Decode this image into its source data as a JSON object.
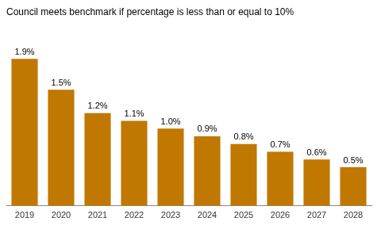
{
  "chart_data": {
    "type": "bar",
    "title": "Council meets benchmark if percentage is less than or equal to 10%",
    "categories": [
      "2019",
      "2020",
      "2021",
      "2022",
      "2023",
      "2024",
      "2025",
      "2026",
      "2027",
      "2028"
    ],
    "values": [
      1.9,
      1.5,
      1.2,
      1.1,
      1.0,
      0.9,
      0.8,
      0.7,
      0.6,
      0.5
    ],
    "value_labels": [
      "1.9%",
      "1.5%",
      "1.2%",
      "1.1%",
      "1.0%",
      "0.9%",
      "0.8%",
      "0.7%",
      "0.6%",
      "0.5%"
    ],
    "color": "#C07800",
    "ylim": [
      0,
      2.35
    ],
    "grid": false,
    "data_labels": true,
    "tick_labels": "x"
  }
}
